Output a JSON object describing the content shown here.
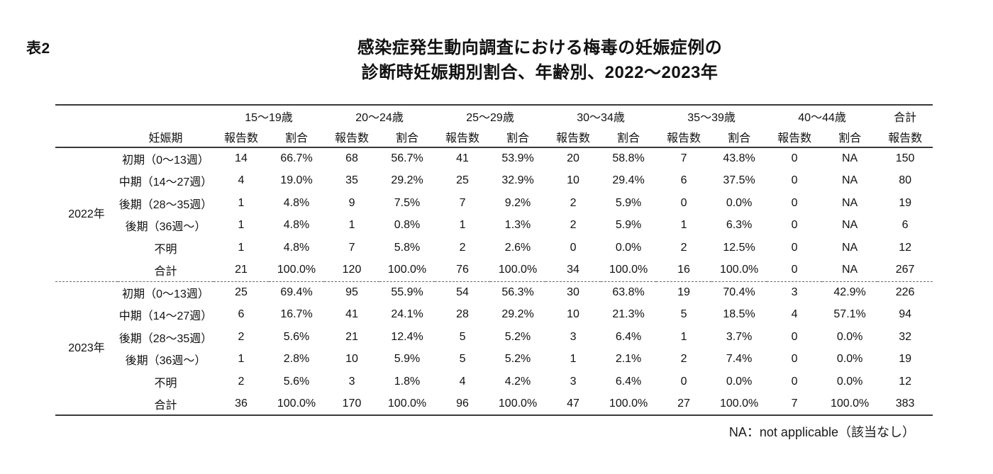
{
  "page": {
    "table_label": "表2",
    "title_line1": "感染症発生動向調査における梅毒の妊娠症例の",
    "title_line2": "診断時妊娠期別割合、年齢別、2022〜2023年"
  },
  "chart_data": {
    "type": "table",
    "title": "感染症発生動向調査における梅毒の妊娠症例の診断時妊娠期別割合、年齢別、2022〜2023年",
    "age_group_headers": [
      "15〜19歳",
      "20〜24歳",
      "25〜29歳",
      "30〜34歳",
      "35〜39歳",
      "40〜44歳"
    ],
    "total_header": "合計",
    "subheader_term": "妊娠期",
    "subheader_count": "報告数",
    "subheader_ratio": "割合",
    "year_groups": [
      {
        "year": "2022年",
        "rows": [
          {
            "term": "初期（0〜13週）",
            "cells": [
              "14",
              "66.7%",
              "68",
              "56.7%",
              "41",
              "53.9%",
              "20",
              "58.8%",
              "7",
              "43.8%",
              "0",
              "NA",
              "150"
            ]
          },
          {
            "term": "中期（14〜27週）",
            "cells": [
              "4",
              "19.0%",
              "35",
              "29.2%",
              "25",
              "32.9%",
              "10",
              "29.4%",
              "6",
              "37.5%",
              "0",
              "NA",
              "80"
            ]
          },
          {
            "term": "後期（28〜35週）",
            "cells": [
              "1",
              "4.8%",
              "9",
              "7.5%",
              "7",
              "9.2%",
              "2",
              "5.9%",
              "0",
              "0.0%",
              "0",
              "NA",
              "19"
            ]
          },
          {
            "term": "後期（36週〜）",
            "cells": [
              "1",
              "4.8%",
              "1",
              "0.8%",
              "1",
              "1.3%",
              "2",
              "5.9%",
              "1",
              "6.3%",
              "0",
              "NA",
              "6"
            ]
          },
          {
            "term": "不明",
            "cells": [
              "1",
              "4.8%",
              "7",
              "5.8%",
              "2",
              "2.6%",
              "0",
              "0.0%",
              "2",
              "12.5%",
              "0",
              "NA",
              "12"
            ]
          },
          {
            "term": "合計",
            "cells": [
              "21",
              "100.0%",
              "120",
              "100.0%",
              "76",
              "100.0%",
              "34",
              "100.0%",
              "16",
              "100.0%",
              "0",
              "NA",
              "267"
            ]
          }
        ]
      },
      {
        "year": "2023年",
        "rows": [
          {
            "term": "初期（0〜13週）",
            "cells": [
              "25",
              "69.4%",
              "95",
              "55.9%",
              "54",
              "56.3%",
              "30",
              "63.8%",
              "19",
              "70.4%",
              "3",
              "42.9%",
              "226"
            ]
          },
          {
            "term": "中期（14〜27週）",
            "cells": [
              "6",
              "16.7%",
              "41",
              "24.1%",
              "28",
              "29.2%",
              "10",
              "21.3%",
              "5",
              "18.5%",
              "4",
              "57.1%",
              "94"
            ]
          },
          {
            "term": "後期（28〜35週）",
            "cells": [
              "2",
              "5.6%",
              "21",
              "12.4%",
              "5",
              "5.2%",
              "3",
              "6.4%",
              "1",
              "3.7%",
              "0",
              "0.0%",
              "32"
            ]
          },
          {
            "term": "後期（36週〜）",
            "cells": [
              "1",
              "2.8%",
              "10",
              "5.9%",
              "5",
              "5.2%",
              "1",
              "2.1%",
              "2",
              "7.4%",
              "0",
              "0.0%",
              "19"
            ]
          },
          {
            "term": "不明",
            "cells": [
              "2",
              "5.6%",
              "3",
              "1.8%",
              "4",
              "4.2%",
              "3",
              "6.4%",
              "0",
              "0.0%",
              "0",
              "0.0%",
              "12"
            ]
          },
          {
            "term": "合計",
            "cells": [
              "36",
              "100.0%",
              "170",
              "100.0%",
              "96",
              "100.0%",
              "47",
              "100.0%",
              "27",
              "100.0%",
              "7",
              "100.0%",
              "383"
            ]
          }
        ]
      }
    ],
    "footnote": "NA：not applicable（該当なし）"
  }
}
